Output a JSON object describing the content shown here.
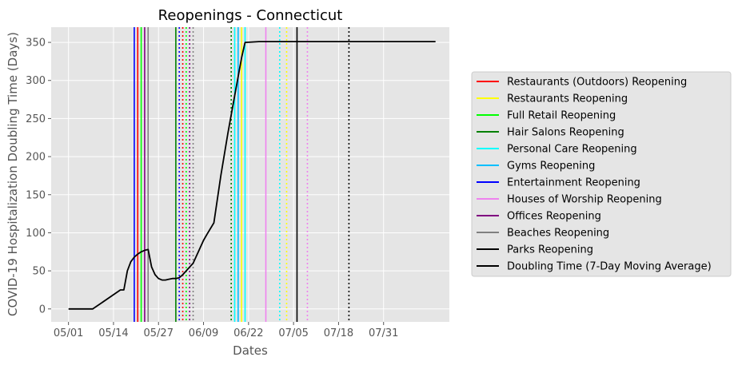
{
  "chart_data": {
    "type": "line",
    "title": "Reopenings - Connecticut",
    "xlabel": "Dates",
    "ylabel": "COVID-19 Hospitalization Doubling Time (Days)",
    "x_ticks": [
      "05/01",
      "05/14",
      "05/27",
      "06/09",
      "06/22",
      "07/05",
      "07/18",
      "07/31"
    ],
    "y_ticks": [
      0,
      50,
      100,
      150,
      200,
      250,
      300,
      350
    ],
    "xlim": [
      "2020-04-26",
      "2020-08-19"
    ],
    "ylim": [
      -17,
      370
    ],
    "grid": true,
    "legend_position": "right",
    "legend": [
      {
        "label": "Restaurants (Outdoors) Reopening",
        "color": "#ff0000"
      },
      {
        "label": "Restaurants Reopening",
        "color": "#ffff00"
      },
      {
        "label": "Full Retail Reopening",
        "color": "#00ff00"
      },
      {
        "label": "Hair Salons Reopening",
        "color": "#008000"
      },
      {
        "label": "Personal Care Reopening",
        "color": "#00ffff"
      },
      {
        "label": "Gyms Reopening",
        "color": "#00bfff"
      },
      {
        "label": "Entertainment Reopening",
        "color": "#0000ff"
      },
      {
        "label": "Houses of Worship Reopening",
        "color": "#ee82ee"
      },
      {
        "label": "Offices Reopening",
        "color": "#800080"
      },
      {
        "label": "Beaches Reopening",
        "color": "#808080"
      },
      {
        "label": "Parks Reopening",
        "color": "#000000"
      },
      {
        "label": "Doubling Time (7-Day Moving Average)",
        "color": "#000000"
      }
    ],
    "vlines": [
      {
        "date": "2020-05-20",
        "color": "#0000ff",
        "style": "solid"
      },
      {
        "date": "2020-05-21",
        "color": "#ff0000",
        "style": "solid"
      },
      {
        "date": "2020-05-22",
        "color": "#00ff00",
        "style": "solid"
      },
      {
        "date": "2020-05-23",
        "color": "#800080",
        "style": "solid"
      },
      {
        "date": "2020-05-24",
        "color": "#808080",
        "style": "solid"
      },
      {
        "date": "2020-06-01",
        "color": "#008000",
        "style": "solid"
      },
      {
        "date": "2020-06-02",
        "color": "#0000ff",
        "style": "dotted"
      },
      {
        "date": "2020-06-03",
        "color": "#ff0000",
        "style": "dotted"
      },
      {
        "date": "2020-06-04",
        "color": "#00ff00",
        "style": "dotted"
      },
      {
        "date": "2020-06-05",
        "color": "#800080",
        "style": "dotted"
      },
      {
        "date": "2020-06-06",
        "color": "#808080",
        "style": "dotted"
      },
      {
        "date": "2020-06-17",
        "color": "#008000",
        "style": "dotted"
      },
      {
        "date": "2020-06-18",
        "color": "#00ffff",
        "style": "solid"
      },
      {
        "date": "2020-06-19",
        "color": "#00bfff",
        "style": "solid"
      },
      {
        "date": "2020-06-20",
        "color": "#ffff00",
        "style": "solid"
      },
      {
        "date": "2020-06-21",
        "color": "#00ffff",
        "style": "solid"
      },
      {
        "date": "2020-06-27",
        "color": "#ee82ee",
        "style": "solid"
      },
      {
        "date": "2020-07-01",
        "color": "#00ffff",
        "style": "dotted"
      },
      {
        "date": "2020-07-03",
        "color": "#ffff00",
        "style": "dotted"
      },
      {
        "date": "2020-07-06",
        "color": "#000000",
        "style": "solid"
      },
      {
        "date": "2020-07-09",
        "color": "#ee82ee",
        "style": "dotted"
      },
      {
        "date": "2020-07-21",
        "color": "#000000",
        "style": "dotted"
      }
    ],
    "series": [
      {
        "name": "Doubling Time (7-Day Moving Average)",
        "color": "#000000",
        "x": [
          "2020-05-01",
          "2020-05-08",
          "2020-05-16",
          "2020-05-17",
          "2020-05-18",
          "2020-05-19",
          "2020-05-20",
          "2020-05-21",
          "2020-05-22",
          "2020-05-23",
          "2020-05-24",
          "2020-05-25",
          "2020-05-26",
          "2020-05-27",
          "2020-05-28",
          "2020-05-29",
          "2020-05-30",
          "2020-05-31",
          "2020-06-01",
          "2020-06-02",
          "2020-06-03",
          "2020-06-04",
          "2020-06-05",
          "2020-06-06",
          "2020-06-07",
          "2020-06-08",
          "2020-06-09",
          "2020-06-10",
          "2020-06-12",
          "2020-06-14",
          "2020-06-16",
          "2020-06-18",
          "2020-06-20",
          "2020-06-21",
          "2020-06-25",
          "2020-07-05",
          "2020-07-18",
          "2020-08-15"
        ],
        "y": [
          0,
          0,
          25,
          25,
          50,
          62,
          68,
          72,
          75,
          77,
          78,
          55,
          45,
          40,
          38,
          38,
          39,
          40,
          40,
          41,
          45,
          50,
          55,
          60,
          70,
          80,
          90,
          98,
          113,
          175,
          230,
          280,
          330,
          350,
          351,
          351,
          351,
          351
        ]
      }
    ]
  }
}
